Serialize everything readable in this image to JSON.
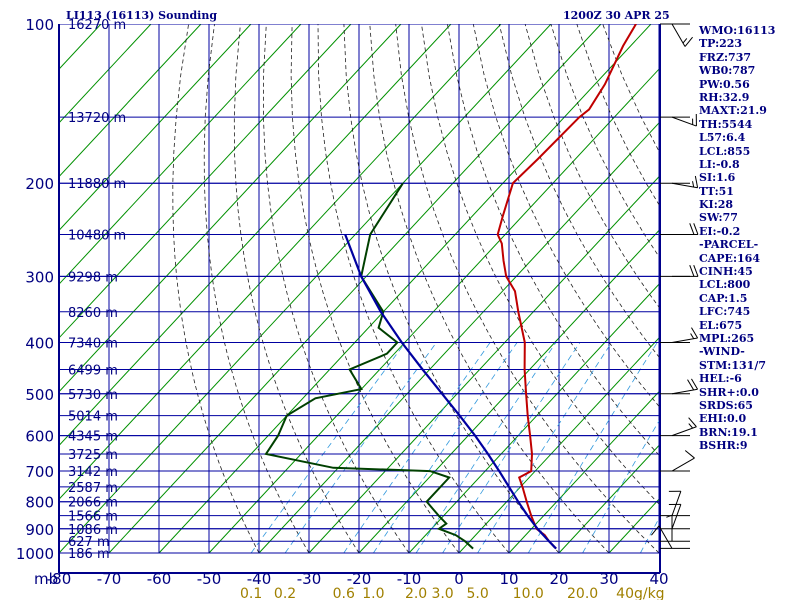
{
  "header": {
    "station": "LI113 (16113) Sounding",
    "time": "1200Z 30 APR 25"
  },
  "indices": [
    "WMO:16113",
    "TP:223",
    "FRZ:737",
    "WB0:787",
    "PW:0.56",
    "RH:32.9",
    "MAXT:21.9",
    "TH:5544",
    "L57:6.4",
    "LCL:855",
    "LI:-0.8",
    "SI:1.6",
    "TT:51",
    "KI:28",
    "SW:77",
    "EI:-0.2",
    "-PARCEL-",
    "CAPE:164",
    "CINH:45",
    "LCL:800",
    "CAP:1.5",
    "LFC:745",
    "EL:675",
    "MPL:265",
    "-WIND-",
    "STM:131/7",
    "HEL:-6",
    "SHR+:0.0",
    "SRDS:65",
    "EHI:0.0",
    "BRN:19.1",
    "BSHR:9"
  ],
  "chart_data": {
    "type": "line",
    "title": "",
    "xlabel": "",
    "ylabel": "mb",
    "xlim": [
      -80,
      0
    ],
    "ylim": [
      1000,
      100
    ],
    "y_scale": "log",
    "grid": true,
    "pressure_ticks": [
      "100",
      "200",
      "300",
      "400",
      "500",
      "600",
      "700",
      "800",
      "900",
      "1000"
    ],
    "pressure_values": [
      100,
      200,
      300,
      400,
      500,
      600,
      700,
      800,
      900,
      1000
    ],
    "temp_ticks": [
      "-80",
      "-70",
      "-60",
      "-50",
      "-40",
      "-30",
      "-20",
      "-10",
      "0",
      "10",
      "20",
      "30",
      "40"
    ],
    "temp_values": [
      -80,
      -70,
      -60,
      -50,
      -40,
      -30,
      -20,
      -10,
      0,
      10,
      20,
      30,
      40
    ],
    "axis_prefix": "mb",
    "mixing_ratio_labels": [
      "0.1",
      "0.2",
      "0.6",
      "1.0",
      "2.0",
      "3.0",
      "5.0",
      "10.0",
      "20.0",
      "40g/kg"
    ],
    "height_labels": [
      {
        "p": 100,
        "label": "16270 m"
      },
      {
        "p": 150,
        "label": "13720 m"
      },
      {
        "p": 200,
        "label": "11880 m"
      },
      {
        "p": 250,
        "label": "10480 m"
      },
      {
        "p": 300,
        "label": "9298 m"
      },
      {
        "p": 350,
        "label": "8260 m"
      },
      {
        "p": 400,
        "label": "7340 m"
      },
      {
        "p": 450,
        "label": "6499 m"
      },
      {
        "p": 500,
        "label": "5730 m"
      },
      {
        "p": 550,
        "label": "5014 m"
      },
      {
        "p": 600,
        "label": "4345 m"
      },
      {
        "p": 650,
        "label": "3725 m"
      },
      {
        "p": 700,
        "label": "3142 m"
      },
      {
        "p": 750,
        "label": "2587 m"
      },
      {
        "p": 800,
        "label": "2066 m"
      },
      {
        "p": 850,
        "label": "1566 m"
      },
      {
        "p": 900,
        "label": "1086 m"
      },
      {
        "p": 950,
        "label": "627 m"
      },
      {
        "p": 1000,
        "label": "186 m"
      }
    ],
    "series": [
      {
        "name": "",
        "color": "#c00000",
        "points": [
          [
            981,
            18.6
          ],
          [
            950,
            15.8
          ],
          [
            925,
            13.8
          ],
          [
            900,
            11.0
          ],
          [
            850,
            7.5
          ],
          [
            800,
            4.0
          ],
          [
            750,
            0.4
          ],
          [
            720,
            -2.0
          ],
          [
            700,
            -0.8
          ],
          [
            650,
            -3.8
          ],
          [
            600,
            -7.6
          ],
          [
            550,
            -11.8
          ],
          [
            500,
            -16.2
          ],
          [
            450,
            -21.0
          ],
          [
            400,
            -26.0
          ],
          [
            350,
            -33.0
          ],
          [
            320,
            -37.5
          ],
          [
            300,
            -42.0
          ],
          [
            280,
            -45.5
          ],
          [
            260,
            -49.0
          ],
          [
            250,
            -51.5
          ],
          [
            230,
            -54.0
          ],
          [
            200,
            -58.0
          ],
          [
            180,
            -57.5
          ],
          [
            150,
            -57.0
          ],
          [
            145,
            -56.5
          ],
          [
            130,
            -58.0
          ],
          [
            110,
            -61.5
          ],
          [
            100,
            -63.0
          ]
        ]
      },
      {
        "name": "",
        "color": "#004000",
        "points": [
          [
            981,
            2.0
          ],
          [
            950,
            -1.0
          ],
          [
            925,
            -4.0
          ],
          [
            900,
            -8.5
          ],
          [
            880,
            -8.0
          ],
          [
            850,
            -11.0
          ],
          [
            800,
            -16.0
          ],
          [
            720,
            -16.0
          ],
          [
            700,
            -21.0
          ],
          [
            690,
            -41.0
          ],
          [
            650,
            -57.0
          ],
          [
            600,
            -58.0
          ],
          [
            550,
            -60.0
          ],
          [
            510,
            -57.5
          ],
          [
            490,
            -50.0
          ],
          [
            450,
            -56.0
          ],
          [
            420,
            -51.5
          ],
          [
            400,
            -51.5
          ],
          [
            375,
            -58.0
          ],
          [
            350,
            -60.0
          ],
          [
            300,
            -71.0
          ],
          [
            250,
            -77.0
          ],
          [
            200,
            -80.0
          ]
        ]
      },
      {
        "name": "",
        "color": "#0000a0",
        "points": [
          [
            981,
            18.6
          ],
          [
            950,
            15.8
          ],
          [
            900,
            11.2
          ],
          [
            850,
            6.8
          ],
          [
            800,
            2.3
          ],
          [
            750,
            -2.3
          ],
          [
            700,
            -7.2
          ],
          [
            650,
            -12.6
          ],
          [
            600,
            -18.6
          ],
          [
            550,
            -25.4
          ],
          [
            500,
            -33.0
          ],
          [
            450,
            -41.4
          ],
          [
            400,
            -50.6
          ],
          [
            350,
            -60.5
          ],
          [
            300,
            -71.0
          ],
          [
            250,
            -82.0
          ]
        ]
      }
    ],
    "wind_barbs": [
      {
        "p": 980,
        "dir": 150,
        "speed": 10
      },
      {
        "p": 950,
        "dir": 180,
        "speed": 5
      },
      {
        "p": 900,
        "dir": 200,
        "speed": 10
      },
      {
        "p": 850,
        "dir": 200,
        "speed": 10
      },
      {
        "p": 700,
        "dir": 240,
        "speed": 10
      },
      {
        "p": 600,
        "dir": 250,
        "speed": 15
      },
      {
        "p": 500,
        "dir": 260,
        "speed": 20
      },
      {
        "p": 400,
        "dir": 260,
        "speed": 15
      },
      {
        "p": 300,
        "dir": 270,
        "speed": 20
      },
      {
        "p": 250,
        "dir": 270,
        "speed": 20
      },
      {
        "p": 200,
        "dir": 280,
        "speed": 15
      },
      {
        "p": 150,
        "dir": 290,
        "speed": 15
      },
      {
        "p": 100,
        "dir": 330,
        "speed": 15
      }
    ],
    "colors": {
      "frame": "#00008b",
      "grid": "#0000a0",
      "isotherm": "#009000",
      "dry_adiabat": "#202020",
      "mixing_ratio": "#3399dd",
      "temperature": "#c00000",
      "dewpoint": "#004000",
      "parcel": "#0000a0"
    }
  }
}
